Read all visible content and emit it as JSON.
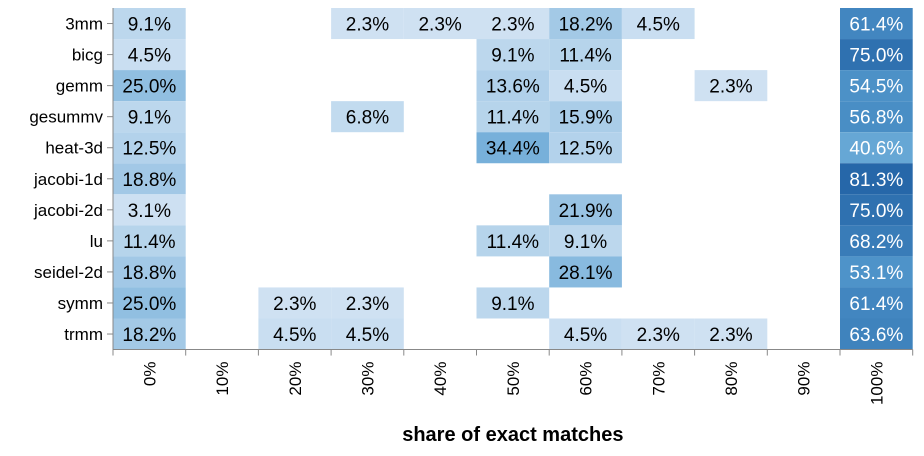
{
  "chart_data": {
    "type": "heatmap",
    "xlabel": "share of exact matches",
    "ylabel": "",
    "x_categories": [
      "0%",
      "10%",
      "20%",
      "30%",
      "40%",
      "50%",
      "60%",
      "70%",
      "80%",
      "90%",
      "100%"
    ],
    "y_categories": [
      "3mm",
      "bicg",
      "gemm",
      "gesummv",
      "heat-3d",
      "jacobi-1d",
      "jacobi-2d",
      "lu",
      "seidel-2d",
      "symm",
      "trmm"
    ],
    "cells": [
      {
        "y": "3mm",
        "x": "0%",
        "value": 9.1,
        "label": "9.1%"
      },
      {
        "y": "3mm",
        "x": "30%",
        "value": 2.3,
        "label": "2.3%"
      },
      {
        "y": "3mm",
        "x": "40%",
        "value": 2.3,
        "label": "2.3%"
      },
      {
        "y": "3mm",
        "x": "50%",
        "value": 2.3,
        "label": "2.3%"
      },
      {
        "y": "3mm",
        "x": "60%",
        "value": 18.2,
        "label": "18.2%"
      },
      {
        "y": "3mm",
        "x": "70%",
        "value": 4.5,
        "label": "4.5%"
      },
      {
        "y": "3mm",
        "x": "100%",
        "value": 61.4,
        "label": "61.4%"
      },
      {
        "y": "bicg",
        "x": "0%",
        "value": 4.5,
        "label": "4.5%"
      },
      {
        "y": "bicg",
        "x": "50%",
        "value": 9.1,
        "label": "9.1%"
      },
      {
        "y": "bicg",
        "x": "60%",
        "value": 11.4,
        "label": "11.4%"
      },
      {
        "y": "bicg",
        "x": "100%",
        "value": 75.0,
        "label": "75.0%"
      },
      {
        "y": "gemm",
        "x": "0%",
        "value": 25.0,
        "label": "25.0%"
      },
      {
        "y": "gemm",
        "x": "50%",
        "value": 13.6,
        "label": "13.6%"
      },
      {
        "y": "gemm",
        "x": "60%",
        "value": 4.5,
        "label": "4.5%"
      },
      {
        "y": "gemm",
        "x": "80%",
        "value": 2.3,
        "label": "2.3%"
      },
      {
        "y": "gemm",
        "x": "100%",
        "value": 54.5,
        "label": "54.5%"
      },
      {
        "y": "gesummv",
        "x": "0%",
        "value": 9.1,
        "label": "9.1%"
      },
      {
        "y": "gesummv",
        "x": "30%",
        "value": 6.8,
        "label": "6.8%"
      },
      {
        "y": "gesummv",
        "x": "50%",
        "value": 11.4,
        "label": "11.4%"
      },
      {
        "y": "gesummv",
        "x": "60%",
        "value": 15.9,
        "label": "15.9%"
      },
      {
        "y": "gesummv",
        "x": "100%",
        "value": 56.8,
        "label": "56.8%"
      },
      {
        "y": "heat-3d",
        "x": "0%",
        "value": 12.5,
        "label": "12.5%"
      },
      {
        "y": "heat-3d",
        "x": "50%",
        "value": 34.4,
        "label": "34.4%"
      },
      {
        "y": "heat-3d",
        "x": "60%",
        "value": 12.5,
        "label": "12.5%"
      },
      {
        "y": "heat-3d",
        "x": "100%",
        "value": 40.6,
        "label": "40.6%"
      },
      {
        "y": "jacobi-1d",
        "x": "0%",
        "value": 18.8,
        "label": "18.8%"
      },
      {
        "y": "jacobi-1d",
        "x": "100%",
        "value": 81.3,
        "label": "81.3%"
      },
      {
        "y": "jacobi-2d",
        "x": "0%",
        "value": 3.1,
        "label": "3.1%"
      },
      {
        "y": "jacobi-2d",
        "x": "60%",
        "value": 21.9,
        "label": "21.9%"
      },
      {
        "y": "jacobi-2d",
        "x": "100%",
        "value": 75.0,
        "label": "75.0%"
      },
      {
        "y": "lu",
        "x": "0%",
        "value": 11.4,
        "label": "11.4%"
      },
      {
        "y": "lu",
        "x": "50%",
        "value": 11.4,
        "label": "11.4%"
      },
      {
        "y": "lu",
        "x": "60%",
        "value": 9.1,
        "label": "9.1%"
      },
      {
        "y": "lu",
        "x": "100%",
        "value": 68.2,
        "label": "68.2%"
      },
      {
        "y": "seidel-2d",
        "x": "0%",
        "value": 18.8,
        "label": "18.8%"
      },
      {
        "y": "seidel-2d",
        "x": "60%",
        "value": 28.1,
        "label": "28.1%"
      },
      {
        "y": "seidel-2d",
        "x": "100%",
        "value": 53.1,
        "label": "53.1%"
      },
      {
        "y": "symm",
        "x": "0%",
        "value": 25.0,
        "label": "25.0%"
      },
      {
        "y": "symm",
        "x": "20%",
        "value": 2.3,
        "label": "2.3%"
      },
      {
        "y": "symm",
        "x": "30%",
        "value": 2.3,
        "label": "2.3%"
      },
      {
        "y": "symm",
        "x": "50%",
        "value": 9.1,
        "label": "9.1%"
      },
      {
        "y": "symm",
        "x": "100%",
        "value": 61.4,
        "label": "61.4%"
      },
      {
        "y": "trmm",
        "x": "0%",
        "value": 18.2,
        "label": "18.2%"
      },
      {
        "y": "trmm",
        "x": "20%",
        "value": 4.5,
        "label": "4.5%"
      },
      {
        "y": "trmm",
        "x": "30%",
        "value": 4.5,
        "label": "4.5%"
      },
      {
        "y": "trmm",
        "x": "60%",
        "value": 4.5,
        "label": "4.5%"
      },
      {
        "y": "trmm",
        "x": "70%",
        "value": 2.3,
        "label": "2.3%"
      },
      {
        "y": "trmm",
        "x": "80%",
        "value": 2.3,
        "label": "2.3%"
      },
      {
        "y": "trmm",
        "x": "100%",
        "value": 63.6,
        "label": "63.6%"
      }
    ],
    "color_scale": {
      "low": "#d5e5f4",
      "mid": "#5aa0d2",
      "high": "#0b4a94",
      "domain": [
        0,
        100
      ]
    },
    "grid": false,
    "legend": "none"
  }
}
